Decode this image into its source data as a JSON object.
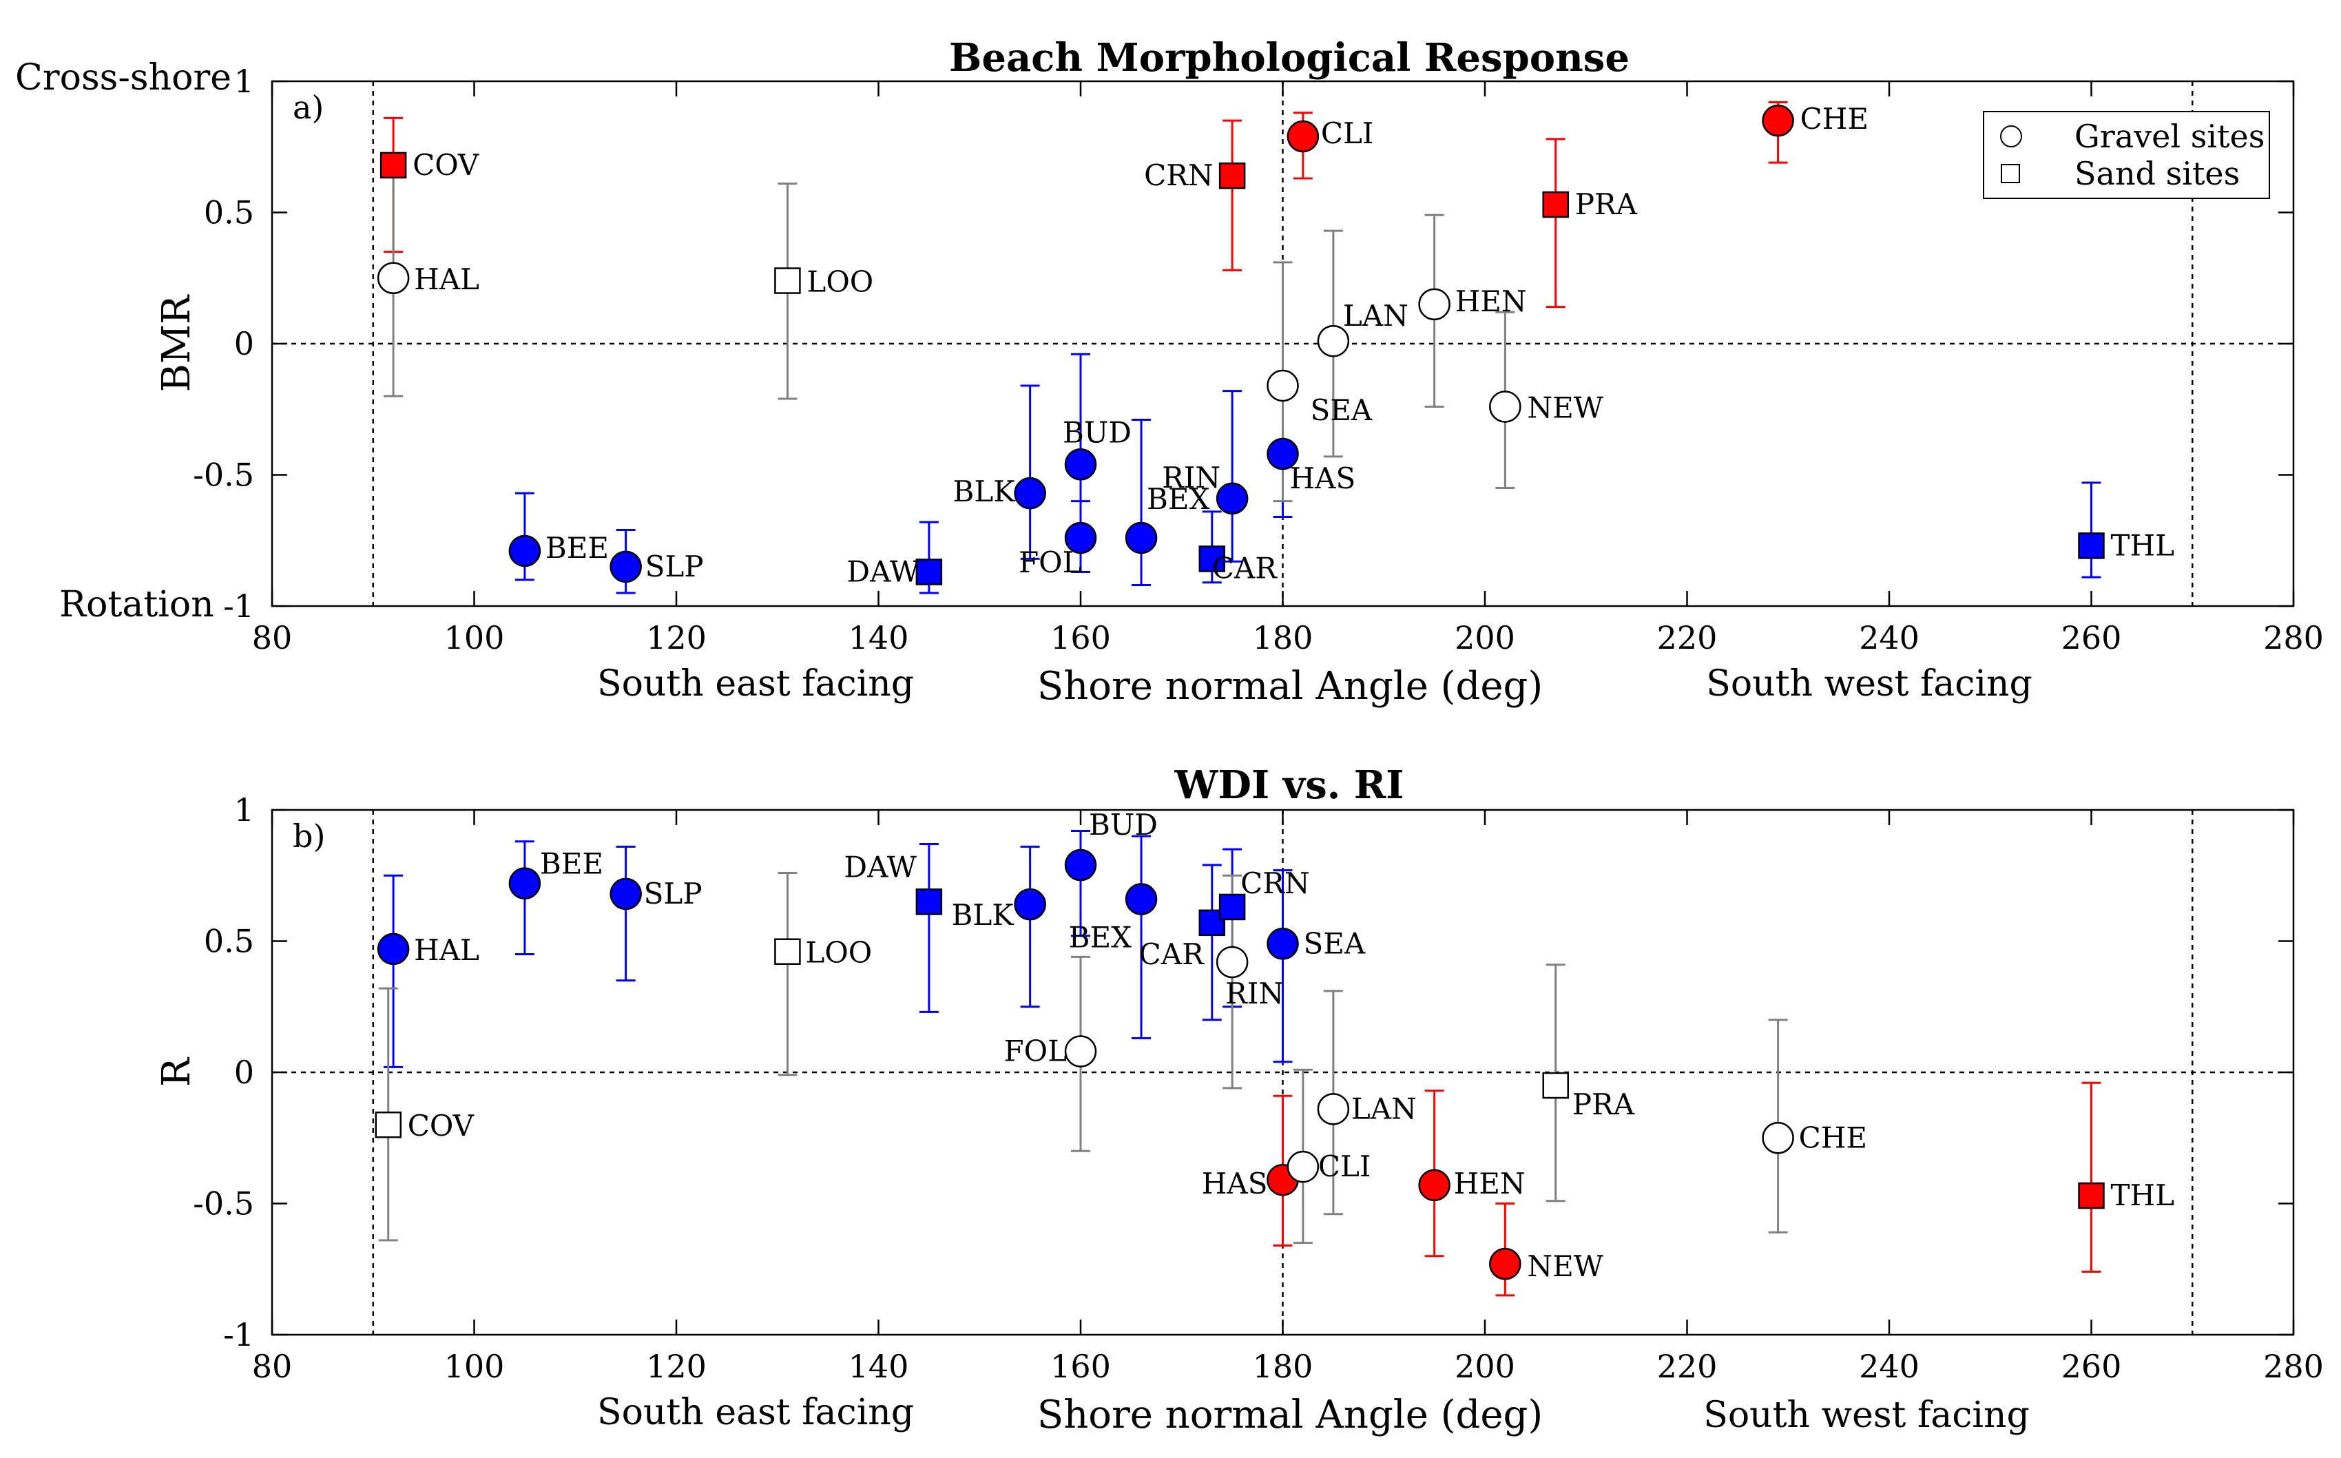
{
  "colors": {
    "red": "#ff0000",
    "blue": "#0000ff",
    "white": "#ffffff",
    "gray": "#808080",
    "redbar": "#ff0000",
    "bluebar": "#0000ff"
  },
  "chart_data": [
    {
      "type": "scatter",
      "title": "Beach Morphological Response",
      "panel": "a)",
      "xlabel": "Shore normal Angle (deg)",
      "ylabel": "BMR",
      "xlim": [
        80,
        280
      ],
      "ylim": [
        -1,
        1
      ],
      "xticks": [
        80,
        100,
        120,
        140,
        160,
        180,
        200,
        220,
        240,
        260,
        280
      ],
      "yticks": [
        -1,
        -0.5,
        0,
        0.5,
        1
      ],
      "ytick_labels": [
        "-1",
        "-0.5",
        "0",
        "0.5",
        "1"
      ],
      "direction_labels": {
        "left": "South east facing",
        "right": "South west facing"
      },
      "y_end_labels": {
        "top": "Cross-shore",
        "bottom": "Rotation"
      },
      "vlines": [
        90,
        180,
        270
      ],
      "hline": 0,
      "legend": {
        "position": "top-right",
        "entries": [
          "Gravel sites",
          "Sand sites"
        ]
      },
      "points": [
        {
          "site": "COV",
          "x": 92,
          "y": 0.68,
          "lo": 0.35,
          "hi": 0.86,
          "marker": "square",
          "color": "red"
        },
        {
          "site": "HAL",
          "x": 92,
          "y": 0.25,
          "lo": -0.2,
          "hi": 0.65,
          "marker": "circle",
          "color": "white"
        },
        {
          "site": "LOO",
          "x": 131,
          "y": 0.24,
          "lo": -0.21,
          "hi": 0.61,
          "marker": "square",
          "color": "white"
        },
        {
          "site": "BEE",
          "x": 105,
          "y": -0.79,
          "lo": -0.9,
          "hi": -0.57,
          "marker": "circle",
          "color": "blue"
        },
        {
          "site": "SLP",
          "x": 115,
          "y": -0.85,
          "lo": -0.95,
          "hi": -0.71,
          "marker": "circle",
          "color": "blue"
        },
        {
          "site": "DAW",
          "x": 145,
          "y": -0.87,
          "lo": -0.95,
          "hi": -0.68,
          "marker": "square",
          "color": "blue"
        },
        {
          "site": "BLK",
          "x": 155,
          "y": -0.57,
          "lo": -0.82,
          "hi": -0.16,
          "marker": "circle",
          "color": "blue"
        },
        {
          "site": "BUD",
          "x": 160,
          "y": -0.46,
          "lo": -0.87,
          "hi": -0.04,
          "marker": "circle",
          "color": "blue"
        },
        {
          "site": "FOL",
          "x": 160,
          "y": -0.74,
          "lo": -0.87,
          "hi": -0.6,
          "marker": "circle",
          "color": "blue"
        },
        {
          "site": "BEX",
          "x": 166,
          "y": -0.74,
          "lo": -0.92,
          "hi": -0.29,
          "marker": "circle",
          "color": "blue"
        },
        {
          "site": "CAR",
          "x": 173,
          "y": -0.82,
          "lo": -0.91,
          "hi": -0.64,
          "marker": "square",
          "color": "blue"
        },
        {
          "site": "RIN",
          "x": 175,
          "y": -0.59,
          "lo": -0.83,
          "hi": -0.18,
          "marker": "circle",
          "color": "blue"
        },
        {
          "site": "CRN",
          "x": 175,
          "y": 0.64,
          "lo": 0.28,
          "hi": 0.85,
          "marker": "square",
          "color": "red"
        },
        {
          "site": "HAS",
          "x": 180,
          "y": -0.42,
          "lo": -0.66,
          "hi": -0.2,
          "marker": "circle",
          "color": "blue"
        },
        {
          "site": "SEA",
          "x": 180,
          "y": -0.16,
          "lo": -0.6,
          "hi": 0.31,
          "marker": "circle",
          "color": "white"
        },
        {
          "site": "CLI",
          "x": 182,
          "y": 0.79,
          "lo": 0.63,
          "hi": 0.88,
          "marker": "circle",
          "color": "red"
        },
        {
          "site": "LAN",
          "x": 185,
          "y": 0.01,
          "lo": -0.43,
          "hi": 0.43,
          "marker": "circle",
          "color": "white"
        },
        {
          "site": "HEN",
          "x": 195,
          "y": 0.15,
          "lo": -0.24,
          "hi": 0.49,
          "marker": "circle",
          "color": "white"
        },
        {
          "site": "NEW",
          "x": 202,
          "y": -0.24,
          "lo": -0.55,
          "hi": 0.12,
          "marker": "circle",
          "color": "white"
        },
        {
          "site": "PRA",
          "x": 207,
          "y": 0.53,
          "lo": 0.14,
          "hi": 0.78,
          "marker": "square",
          "color": "red"
        },
        {
          "site": "CHE",
          "x": 229,
          "y": 0.85,
          "lo": 0.69,
          "hi": 0.92,
          "marker": "circle",
          "color": "red"
        },
        {
          "site": "THL",
          "x": 260,
          "y": -0.77,
          "lo": -0.89,
          "hi": -0.53,
          "marker": "square",
          "color": "blue"
        }
      ]
    },
    {
      "type": "scatter",
      "title": "WDI vs. RI",
      "panel": "b)",
      "xlabel": "Shore normal Angle (deg)",
      "ylabel": "R",
      "xlim": [
        80,
        280
      ],
      "ylim": [
        -1,
        1
      ],
      "xticks": [
        80,
        100,
        120,
        140,
        160,
        180,
        200,
        220,
        240,
        260,
        280
      ],
      "yticks": [
        -1,
        -0.5,
        0,
        0.5,
        1
      ],
      "ytick_labels": [
        "-1",
        "-0.5",
        "0",
        "0.5",
        "1"
      ],
      "direction_labels": {
        "left": "South east facing",
        "right": "South west facing"
      },
      "vlines": [
        90,
        180,
        270
      ],
      "hline": 0,
      "points": [
        {
          "site": "HAL",
          "x": 92,
          "y": 0.47,
          "lo": 0.02,
          "hi": 0.75,
          "marker": "circle",
          "color": "blue"
        },
        {
          "site": "COV",
          "x": 91.5,
          "y": -0.2,
          "lo": -0.64,
          "hi": 0.32,
          "marker": "square",
          "color": "white"
        },
        {
          "site": "BEE",
          "x": 105,
          "y": 0.72,
          "lo": 0.45,
          "hi": 0.88,
          "marker": "circle",
          "color": "blue"
        },
        {
          "site": "SLP",
          "x": 115,
          "y": 0.68,
          "lo": 0.35,
          "hi": 0.86,
          "marker": "circle",
          "color": "blue"
        },
        {
          "site": "LOO",
          "x": 131,
          "y": 0.46,
          "lo": -0.01,
          "hi": 0.76,
          "marker": "square",
          "color": "white"
        },
        {
          "site": "DAW",
          "x": 145,
          "y": 0.65,
          "lo": 0.23,
          "hi": 0.87,
          "marker": "square",
          "color": "blue"
        },
        {
          "site": "BLK",
          "x": 155,
          "y": 0.64,
          "lo": 0.25,
          "hi": 0.86,
          "marker": "circle",
          "color": "blue"
        },
        {
          "site": "BUD",
          "x": 160,
          "y": 0.79,
          "lo": 0.52,
          "hi": 0.92,
          "marker": "circle",
          "color": "blue"
        },
        {
          "site": "FOL",
          "x": 160,
          "y": 0.08,
          "lo": -0.3,
          "hi": 0.44,
          "marker": "circle",
          "color": "white"
        },
        {
          "site": "BEX",
          "x": 166,
          "y": 0.66,
          "lo": 0.13,
          "hi": 0.9,
          "marker": "circle",
          "color": "blue"
        },
        {
          "site": "CAR",
          "x": 173,
          "y": 0.57,
          "lo": 0.2,
          "hi": 0.79,
          "marker": "square",
          "color": "blue"
        },
        {
          "site": "CRN",
          "x": 175,
          "y": 0.63,
          "lo": 0.25,
          "hi": 0.85,
          "marker": "square",
          "color": "blue"
        },
        {
          "site": "RIN",
          "x": 175,
          "y": 0.42,
          "lo": -0.06,
          "hi": 0.75,
          "marker": "circle",
          "color": "white"
        },
        {
          "site": "SEA",
          "x": 180,
          "y": 0.49,
          "lo": 0.04,
          "hi": 0.77,
          "marker": "circle",
          "color": "blue"
        },
        {
          "site": "HAS",
          "x": 180,
          "y": -0.41,
          "lo": -0.66,
          "hi": -0.09,
          "marker": "circle",
          "color": "red"
        },
        {
          "site": "CLI",
          "x": 182,
          "y": -0.36,
          "lo": -0.65,
          "hi": 0.01,
          "marker": "circle",
          "color": "white"
        },
        {
          "site": "LAN",
          "x": 185,
          "y": -0.14,
          "lo": -0.54,
          "hi": 0.31,
          "marker": "circle",
          "color": "white"
        },
        {
          "site": "HEN",
          "x": 195,
          "y": -0.43,
          "lo": -0.7,
          "hi": -0.07,
          "marker": "circle",
          "color": "red"
        },
        {
          "site": "NEW",
          "x": 202,
          "y": -0.73,
          "lo": -0.85,
          "hi": -0.5,
          "marker": "circle",
          "color": "red"
        },
        {
          "site": "PRA",
          "x": 207,
          "y": -0.05,
          "lo": -0.49,
          "hi": 0.41,
          "marker": "square",
          "color": "white"
        },
        {
          "site": "CHE",
          "x": 229,
          "y": -0.25,
          "lo": -0.61,
          "hi": 0.2,
          "marker": "circle",
          "color": "white"
        },
        {
          "site": "THL",
          "x": 260,
          "y": -0.47,
          "lo": -0.76,
          "hi": -0.04,
          "marker": "square",
          "color": "red"
        }
      ]
    }
  ]
}
